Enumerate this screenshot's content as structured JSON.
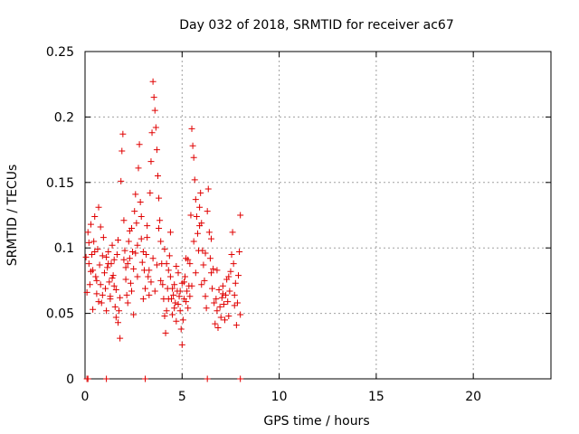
{
  "chart_data": {
    "type": "scatter",
    "title": "Day 032 of 2018, SRMTID for receiver ac67",
    "xlabel": "GPS time / hours",
    "ylabel": "SRMTID / TECUs",
    "xlim": [
      0,
      24
    ],
    "ylim": [
      0,
      0.25
    ],
    "x_ticks": [
      0,
      5,
      10,
      15,
      20
    ],
    "x_tick_labels": [
      "0",
      "5",
      "10",
      "15",
      "20"
    ],
    "y_ticks": [
      0,
      0.05,
      0.1,
      0.15,
      0.2,
      0.25
    ],
    "y_tick_labels": [
      "0",
      "0.05",
      "0.1",
      "0.15",
      "0.2",
      "0.25"
    ],
    "grid": true,
    "marker": "+",
    "color": "#e00000",
    "series": [
      {
        "name": "SRMTID",
        "points": [
          [
            0.05,
            0.093
          ],
          [
            0.1,
            0.066
          ],
          [
            0.15,
            0.112
          ],
          [
            0.2,
            0.088
          ],
          [
            0.25,
            0.072
          ],
          [
            0.3,
            0.118
          ],
          [
            0.35,
            0.095
          ],
          [
            0.4,
            0.083
          ],
          [
            0.45,
            0.105
          ],
          [
            0.5,
            0.124
          ],
          [
            0.55,
            0.078
          ],
          [
            0.6,
            0.065
          ],
          [
            0.65,
            0.099
          ],
          [
            0.7,
            0.131
          ],
          [
            0.75,
            0.087
          ],
          [
            0.8,
            0.072
          ],
          [
            0.85,
            0.058
          ],
          [
            0.9,
            0.094
          ],
          [
            0.95,
            0.108
          ],
          [
            1.0,
            0.081
          ],
          [
            1.05,
            0.069
          ],
          [
            1.1,
            0.052
          ],
          [
            1.15,
            0.085
          ],
          [
            1.2,
            0.097
          ],
          [
            1.25,
            0.074
          ],
          [
            1.3,
            0.063
          ],
          [
            1.35,
            0.088
          ],
          [
            1.4,
            0.102
          ],
          [
            1.45,
            0.079
          ],
          [
            1.5,
            0.091
          ],
          [
            1.55,
            0.055
          ],
          [
            1.6,
            0.068
          ],
          [
            1.65,
            0.095
          ],
          [
            1.7,
            0.043
          ],
          [
            1.75,
            0.052
          ],
          [
            1.8,
            0.031
          ],
          [
            1.85,
            0.151
          ],
          [
            1.9,
            0.174
          ],
          [
            1.95,
            0.187
          ],
          [
            2.0,
            0.121
          ],
          [
            2.05,
            0.098
          ],
          [
            2.1,
            0.076
          ],
          [
            2.15,
            0.064
          ],
          [
            2.2,
            0.088
          ],
          [
            2.25,
            0.105
          ],
          [
            2.3,
            0.092
          ],
          [
            2.35,
            0.073
          ],
          [
            2.4,
            0.115
          ],
          [
            2.45,
            0.097
          ],
          [
            2.5,
            0.084
          ],
          [
            2.55,
            0.128
          ],
          [
            2.6,
            0.141
          ],
          [
            2.65,
            0.119
          ],
          [
            2.7,
            0.102
          ],
          [
            2.75,
            0.161
          ],
          [
            2.8,
            0.179
          ],
          [
            2.85,
            0.135
          ],
          [
            2.9,
            0.107
          ],
          [
            2.95,
            0.089
          ],
          [
            3.0,
            0.097
          ],
          [
            3.05,
            0.083
          ],
          [
            3.1,
            0.069
          ],
          [
            3.15,
            0.095
          ],
          [
            3.2,
            0.117
          ],
          [
            3.25,
            0.078
          ],
          [
            3.3,
            0.064
          ],
          [
            3.35,
            0.142
          ],
          [
            3.4,
            0.166
          ],
          [
            3.45,
            0.188
          ],
          [
            3.5,
            0.227
          ],
          [
            3.55,
            0.215
          ],
          [
            3.6,
            0.205
          ],
          [
            3.65,
            0.192
          ],
          [
            3.7,
            0.175
          ],
          [
            3.75,
            0.155
          ],
          [
            3.8,
            0.138
          ],
          [
            3.85,
            0.121
          ],
          [
            3.9,
            0.105
          ],
          [
            3.95,
            0.088
          ],
          [
            4.0,
            0.072
          ],
          [
            4.05,
            0.061
          ],
          [
            4.1,
            0.048
          ],
          [
            4.15,
            0.035
          ],
          [
            4.2,
            0.052
          ],
          [
            4.25,
            0.069
          ],
          [
            4.3,
            0.083
          ],
          [
            4.35,
            0.094
          ],
          [
            4.4,
            0.078
          ],
          [
            4.45,
            0.061
          ],
          [
            4.5,
            0.049
          ],
          [
            4.55,
            0.064
          ],
          [
            4.6,
            0.072
          ],
          [
            4.65,
            0.058
          ],
          [
            4.7,
            0.044
          ],
          [
            4.75,
            0.067
          ],
          [
            4.8,
            0.081
          ],
          [
            4.85,
            0.063
          ],
          [
            4.9,
            0.052
          ],
          [
            4.95,
            0.038
          ],
          [
            5.0,
            0.026
          ],
          [
            5.05,
            0.045
          ],
          [
            5.1,
            0.061
          ],
          [
            5.15,
            0.078
          ],
          [
            5.2,
            0.092
          ],
          [
            5.25,
            0.067
          ],
          [
            5.3,
            0.054
          ],
          [
            5.35,
            0.071
          ],
          [
            5.4,
            0.088
          ],
          [
            5.45,
            0.125
          ],
          [
            5.5,
            0.191
          ],
          [
            5.55,
            0.178
          ],
          [
            5.6,
            0.169
          ],
          [
            5.65,
            0.152
          ],
          [
            5.7,
            0.137
          ],
          [
            5.75,
            0.124
          ],
          [
            5.8,
            0.111
          ],
          [
            5.85,
            0.098
          ],
          [
            5.9,
            0.131
          ],
          [
            5.95,
            0.142
          ],
          [
            6.0,
            0.119
          ],
          [
            6.05,
            0.098
          ],
          [
            6.1,
            0.087
          ],
          [
            6.15,
            0.075
          ],
          [
            6.2,
            0.063
          ],
          [
            6.25,
            0.054
          ],
          [
            6.3,
            0.128
          ],
          [
            6.35,
            0.145
          ],
          [
            6.4,
            0.112
          ],
          [
            6.45,
            0.092
          ],
          [
            6.5,
            0.081
          ],
          [
            6.55,
            0.069
          ],
          [
            6.6,
            0.084
          ],
          [
            6.65,
            0.058
          ],
          [
            6.7,
            0.042
          ],
          [
            6.75,
            0.061
          ],
          [
            6.8,
            0.052
          ],
          [
            6.85,
            0.039
          ],
          [
            6.9,
            0.068
          ],
          [
            6.95,
            0.055
          ],
          [
            7.0,
            0.047
          ],
          [
            7.05,
            0.062
          ],
          [
            7.1,
            0.071
          ],
          [
            7.15,
            0.057
          ],
          [
            7.2,
            0.045
          ],
          [
            7.25,
            0.064
          ],
          [
            7.3,
            0.076
          ],
          [
            7.35,
            0.059
          ],
          [
            7.4,
            0.048
          ],
          [
            7.45,
            0.067
          ],
          [
            7.5,
            0.082
          ],
          [
            7.55,
            0.095
          ],
          [
            7.6,
            0.112
          ],
          [
            7.65,
            0.088
          ],
          [
            7.7,
            0.064
          ],
          [
            7.75,
            0.073
          ],
          [
            7.8,
            0.041
          ],
          [
            7.85,
            0.058
          ],
          [
            7.9,
            0.079
          ],
          [
            7.95,
            0.097
          ],
          [
            8.0,
            0.125
          ],
          [
            0.3,
            0.082
          ],
          [
            0.6,
            0.075
          ],
          [
            0.9,
            0.064
          ],
          [
            1.2,
            0.088
          ],
          [
            1.5,
            0.071
          ],
          [
            1.8,
            0.062
          ],
          [
            2.1,
            0.085
          ],
          [
            2.4,
            0.067
          ],
          [
            2.7,
            0.078
          ],
          [
            3.0,
            0.061
          ],
          [
            3.3,
            0.083
          ],
          [
            3.6,
            0.067
          ],
          [
            3.9,
            0.075
          ],
          [
            4.2,
            0.088
          ],
          [
            4.5,
            0.069
          ],
          [
            4.8,
            0.057
          ],
          [
            5.1,
            0.074
          ],
          [
            5.4,
            0.063
          ],
          [
            5.7,
            0.081
          ],
          [
            6.0,
            0.072
          ],
          [
            0.2,
            0.104
          ],
          [
            0.5,
            0.097
          ],
          [
            0.8,
            0.116
          ],
          [
            1.1,
            0.093
          ],
          [
            1.4,
            0.077
          ],
          [
            1.7,
            0.106
          ],
          [
            2.0,
            0.091
          ],
          [
            2.3,
            0.113
          ],
          [
            2.6,
            0.096
          ],
          [
            2.9,
            0.124
          ],
          [
            3.2,
            0.108
          ],
          [
            3.5,
            0.092
          ],
          [
            3.8,
            0.115
          ],
          [
            4.1,
            0.099
          ],
          [
            4.4,
            0.112
          ],
          [
            4.7,
            0.086
          ],
          [
            5.0,
            0.073
          ],
          [
            5.3,
            0.091
          ],
          [
            5.6,
            0.105
          ],
          [
            5.9,
            0.117
          ],
          [
            6.2,
            0.096
          ],
          [
            6.5,
            0.107
          ],
          [
            6.8,
            0.083
          ],
          [
            7.1,
            0.065
          ],
          [
            7.4,
            0.078
          ],
          [
            7.7,
            0.056
          ],
          [
            8.0,
            0.049
          ],
          [
            4.3,
            0.061
          ],
          [
            4.6,
            0.054
          ],
          [
            4.9,
            0.067
          ],
          [
            5.2,
            0.059
          ],
          [
            5.5,
            0.071
          ],
          [
            3.4,
            0.074
          ],
          [
            3.7,
            0.087
          ],
          [
            2.2,
            0.058
          ],
          [
            2.5,
            0.049
          ],
          [
            1.6,
            0.047
          ],
          [
            1.3,
            0.061
          ],
          [
            0.7,
            0.059
          ],
          [
            0.4,
            0.053
          ]
        ]
      },
      {
        "name": "zero-line",
        "points": [
          [
            0.1,
            0
          ],
          [
            0.15,
            0
          ],
          [
            1.1,
            0
          ],
          [
            3.1,
            0
          ],
          [
            6.3,
            0
          ],
          [
            8.0,
            0
          ]
        ]
      }
    ]
  }
}
